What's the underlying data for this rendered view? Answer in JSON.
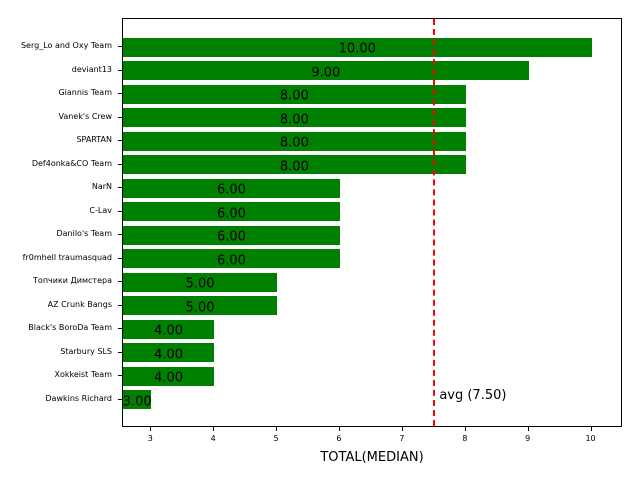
{
  "chart_data": {
    "type": "bar",
    "orientation": "horizontal",
    "title": "",
    "xlabel": "TOTAL(MEDIAN)",
    "ylabel": "",
    "xlim": [
      2.55,
      10.5
    ],
    "xticks": [
      3,
      4,
      5,
      6,
      7,
      8,
      9,
      10
    ],
    "bar_color": "#008000",
    "categories": [
      "Serg_Lo and Oxy Team",
      "deviant13",
      "Giannis Team",
      "Vanek's Crew",
      "SPARTAN",
      "Def4onka&CO Team",
      "NarN",
      "C-Lav",
      "Danilo's Team",
      "fr0mhell traumasquad",
      "Топчики Димстера",
      "AZ Crunk Bangs",
      "Black's BoroDa Team",
      "Starbury SLS",
      "Xokkeist Team",
      "Dawkins Richard"
    ],
    "values": [
      10,
      9,
      8,
      8,
      8,
      8,
      6,
      6,
      6,
      6,
      5,
      5,
      4,
      4,
      4,
      3
    ],
    "value_labels": [
      "10.00",
      "9.00",
      "8.00",
      "8.00",
      "8.00",
      "8.00",
      "6.00",
      "6.00",
      "6.00",
      "6.00",
      "5.00",
      "5.00",
      "4.00",
      "4.00",
      "4.00",
      "3.00"
    ],
    "reference_line": {
      "value": 7.5,
      "label": "avg (7.50)",
      "color": "#ff0000",
      "style": "dashed"
    },
    "grid": false,
    "legend": null
  }
}
